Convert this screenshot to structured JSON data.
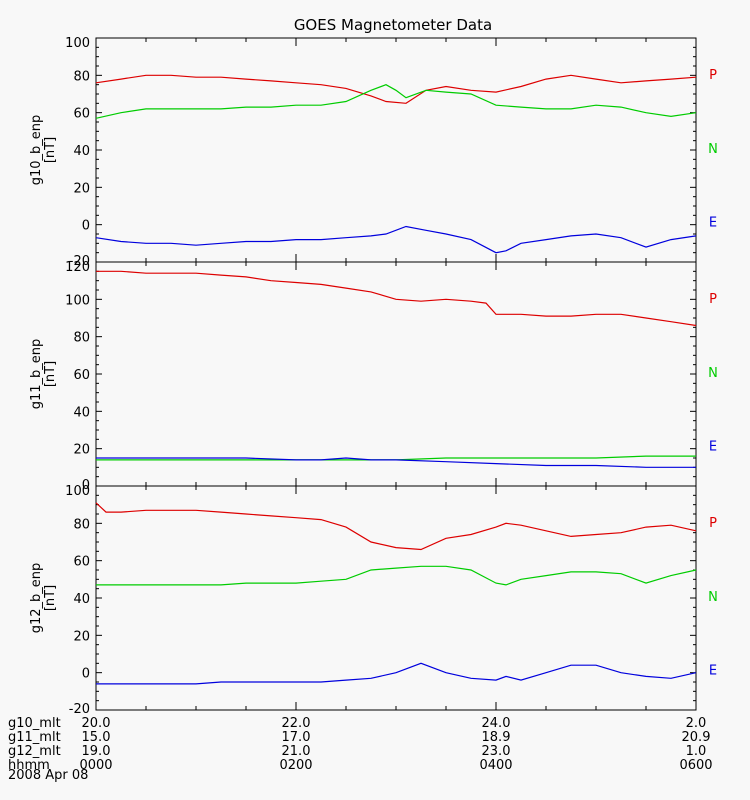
{
  "title": "GOES Magnetometer Data",
  "colors": {
    "P": "#dd0000",
    "N": "#00cc00",
    "E": "#0000dd",
    "axis": "#000000",
    "background": "#f8f8f8"
  },
  "chart_data": [
    {
      "type": "line",
      "panel_label": [
        "g10_b_enp",
        "[nT]"
      ],
      "ylim": [
        -20,
        100
      ],
      "yticks": [
        -20,
        0,
        20,
        40,
        60,
        80,
        100
      ],
      "xlim": [
        0,
        6
      ],
      "series": [
        {
          "name": "P",
          "x": [
            0,
            0.25,
            0.5,
            0.75,
            1,
            1.25,
            1.5,
            1.75,
            2,
            2.25,
            2.5,
            2.75,
            2.9,
            3.1,
            3.3,
            3.5,
            3.75,
            4,
            4.25,
            4.5,
            4.75,
            5,
            5.25,
            5.5,
            5.75,
            6
          ],
          "y": [
            76,
            78,
            80,
            80,
            79,
            79,
            78,
            77,
            76,
            75,
            73,
            69,
            66,
            65,
            72,
            74,
            72,
            71,
            74,
            78,
            80,
            78,
            76,
            77,
            78,
            79
          ]
        },
        {
          "name": "N",
          "x": [
            0,
            0.25,
            0.5,
            0.75,
            1,
            1.25,
            1.5,
            1.75,
            2,
            2.25,
            2.5,
            2.75,
            2.9,
            3.0,
            3.1,
            3.3,
            3.5,
            3.75,
            4,
            4.25,
            4.5,
            4.75,
            5,
            5.25,
            5.5,
            5.75,
            6
          ],
          "y": [
            57,
            60,
            62,
            62,
            62,
            62,
            63,
            63,
            64,
            64,
            66,
            72,
            75,
            72,
            68,
            72,
            71,
            70,
            64,
            63,
            62,
            62,
            64,
            63,
            60,
            58,
            60
          ]
        },
        {
          "name": "E",
          "x": [
            0,
            0.25,
            0.5,
            0.75,
            1,
            1.25,
            1.5,
            1.75,
            2,
            2.25,
            2.5,
            2.75,
            2.9,
            3.1,
            3.3,
            3.5,
            3.75,
            4,
            4.1,
            4.25,
            4.5,
            4.75,
            5,
            5.25,
            5.5,
            5.75,
            6
          ],
          "y": [
            -7,
            -9,
            -10,
            -10,
            -11,
            -10,
            -9,
            -9,
            -8,
            -8,
            -7,
            -6,
            -5,
            -1,
            -3,
            -5,
            -8,
            -15,
            -14,
            -10,
            -8,
            -6,
            -5,
            -7,
            -12,
            -8,
            -6
          ]
        }
      ],
      "legend": [
        "P",
        "N",
        "E"
      ]
    },
    {
      "type": "line",
      "panel_label": [
        "g11_b_enp",
        "[nT]"
      ],
      "ylim": [
        0,
        120
      ],
      "yticks": [
        0,
        20,
        40,
        60,
        80,
        100,
        120
      ],
      "xlim": [
        0,
        6
      ],
      "series": [
        {
          "name": "P",
          "x": [
            0,
            0.25,
            0.5,
            0.75,
            1,
            1.25,
            1.5,
            1.75,
            2,
            2.25,
            2.5,
            2.75,
            3,
            3.25,
            3.5,
            3.75,
            3.9,
            4,
            4.25,
            4.5,
            4.75,
            5,
            5.25,
            5.5,
            5.75,
            6
          ],
          "y": [
            115,
            115,
            114,
            114,
            114,
            113,
            112,
            110,
            109,
            108,
            106,
            104,
            100,
            99,
            100,
            99,
            98,
            92,
            92,
            91,
            91,
            92,
            92,
            90,
            88,
            86
          ]
        },
        {
          "name": "N",
          "x": [
            0,
            0.5,
            1,
            1.5,
            2,
            2.5,
            3,
            3.5,
            4,
            4.5,
            5,
            5.5,
            6
          ],
          "y": [
            14,
            14,
            14,
            14,
            14,
            14,
            14,
            15,
            15,
            15,
            15,
            16,
            16
          ]
        },
        {
          "name": "E",
          "x": [
            0,
            0.5,
            1,
            1.5,
            2,
            2.25,
            2.5,
            2.75,
            3,
            3.5,
            4,
            4.5,
            5,
            5.5,
            6
          ],
          "y": [
            15,
            15,
            15,
            15,
            14,
            14,
            15,
            14,
            14,
            13,
            12,
            11,
            11,
            10,
            10
          ]
        }
      ],
      "legend": [
        "P",
        "N",
        "E"
      ]
    },
    {
      "type": "line",
      "panel_label": [
        "g12_b_enp",
        "[nT]"
      ],
      "ylim": [
        -20,
        100
      ],
      "yticks": [
        -20,
        0,
        20,
        40,
        60,
        80,
        100
      ],
      "xlim": [
        0,
        6
      ],
      "series": [
        {
          "name": "P",
          "x": [
            0,
            0.1,
            0.25,
            0.5,
            0.75,
            1,
            1.25,
            1.5,
            1.75,
            2,
            2.25,
            2.5,
            2.75,
            3,
            3.25,
            3.5,
            3.75,
            4,
            4.1,
            4.25,
            4.5,
            4.75,
            5,
            5.25,
            5.5,
            5.75,
            6
          ],
          "y": [
            91,
            86,
            86,
            87,
            87,
            87,
            86,
            85,
            84,
            83,
            82,
            78,
            70,
            67,
            66,
            72,
            74,
            78,
            80,
            79,
            76,
            73,
            74,
            75,
            78,
            79,
            76
          ]
        },
        {
          "name": "N",
          "x": [
            0,
            0.25,
            0.5,
            0.75,
            1,
            1.25,
            1.5,
            1.75,
            2,
            2.25,
            2.5,
            2.75,
            3,
            3.25,
            3.5,
            3.75,
            4,
            4.1,
            4.25,
            4.5,
            4.75,
            5,
            5.25,
            5.5,
            5.75,
            6
          ],
          "y": [
            47,
            47,
            47,
            47,
            47,
            47,
            48,
            48,
            48,
            49,
            50,
            55,
            56,
            57,
            57,
            55,
            48,
            47,
            50,
            52,
            54,
            54,
            53,
            48,
            52,
            55
          ]
        },
        {
          "name": "E",
          "x": [
            0,
            0.25,
            0.5,
            0.75,
            1,
            1.25,
            1.5,
            1.75,
            2,
            2.25,
            2.5,
            2.75,
            3,
            3.25,
            3.5,
            3.75,
            4,
            4.1,
            4.25,
            4.5,
            4.75,
            5,
            5.25,
            5.5,
            5.75,
            6
          ],
          "y": [
            -6,
            -6,
            -6,
            -6,
            -6,
            -5,
            -5,
            -5,
            -5,
            -5,
            -4,
            -3,
            0,
            5,
            0,
            -3,
            -4,
            -2,
            -4,
            0,
            4,
            4,
            0,
            -2,
            -3,
            0
          ]
        }
      ],
      "legend": [
        "P",
        "N",
        "E"
      ]
    }
  ],
  "time_axis": {
    "rows": [
      {
        "label": "g10_mlt",
        "values": [
          "20.0",
          "22.0",
          "24.0",
          "2.0"
        ]
      },
      {
        "label": "g11_mlt",
        "values": [
          "15.0",
          "17.0",
          "18.9",
          "20.9"
        ]
      },
      {
        "label": "g12_mlt",
        "values": [
          "19.0",
          "21.0",
          "23.0",
          "1.0"
        ]
      },
      {
        "label": "hhmm",
        "values": [
          "0000",
          "0200",
          "0400",
          "0600"
        ]
      }
    ],
    "tick_hours": [
      0,
      2,
      4,
      6
    ],
    "date": "2008 Apr 08"
  }
}
